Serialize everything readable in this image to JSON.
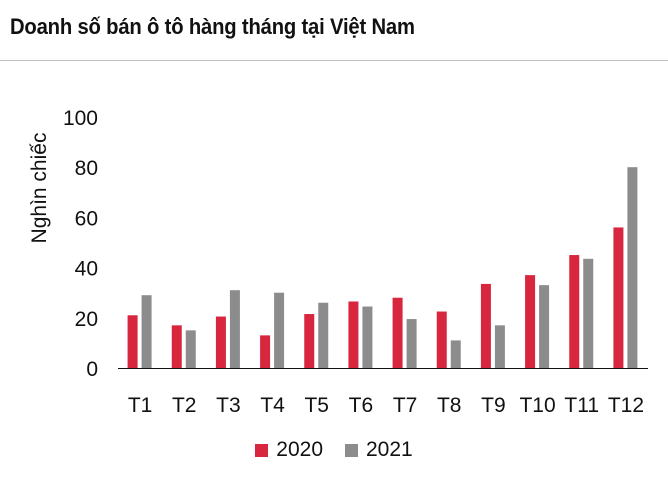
{
  "title": "Doanh số bán ô tô hàng tháng tại Việt Nam",
  "chart_data": {
    "type": "bar",
    "title": "Doanh số bán ô tô hàng tháng tại Việt Nam",
    "ylabel": "Nghìn chiếc",
    "xlabel": "",
    "ylim": [
      0,
      100
    ],
    "yticks": [
      0,
      20,
      40,
      60,
      80,
      100
    ],
    "categories": [
      "T1",
      "T2",
      "T3",
      "T4",
      "T5",
      "T6",
      "T7",
      "T8",
      "T9",
      "T10",
      "T11",
      "T12"
    ],
    "series": [
      {
        "name": "2020",
        "color": "#d7263d",
        "values": [
          21,
          17,
          20.5,
          13,
          21.5,
          26.5,
          28,
          22.5,
          33.5,
          37,
          45,
          56
        ]
      },
      {
        "name": "2021",
        "color": "#8c8c8c",
        "values": [
          29,
          15,
          31,
          30,
          26,
          24.5,
          19.5,
          11,
          17,
          33,
          43.5,
          80
        ]
      }
    ],
    "legend": "bottom",
    "grid": false
  }
}
